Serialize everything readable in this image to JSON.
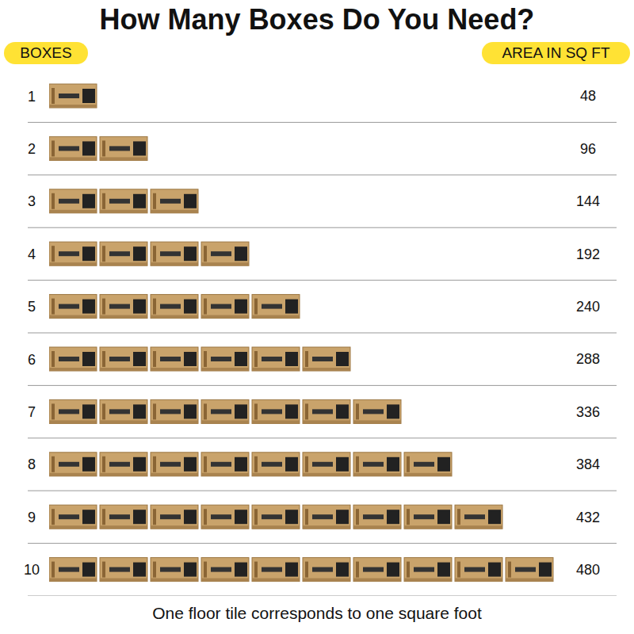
{
  "chart_data": {
    "type": "bar",
    "title": "How Many Boxes Do You Need?",
    "ylabel": "BOXES",
    "xlabel": "AREA IN SQ FT",
    "categories": [
      "1",
      "2",
      "3",
      "4",
      "5",
      "6",
      "7",
      "8",
      "9",
      "10"
    ],
    "values": [
      48,
      96,
      144,
      192,
      240,
      288,
      336,
      384,
      432,
      480
    ],
    "color": "#c9a36b",
    "orientation": "horizontal",
    "xlim": [
      0,
      480
    ],
    "data_labels": true,
    "tick_labels": "y",
    "grid": true,
    "annotations": [
      "One floor tile corresponds to one square foot"
    ]
  }
}
